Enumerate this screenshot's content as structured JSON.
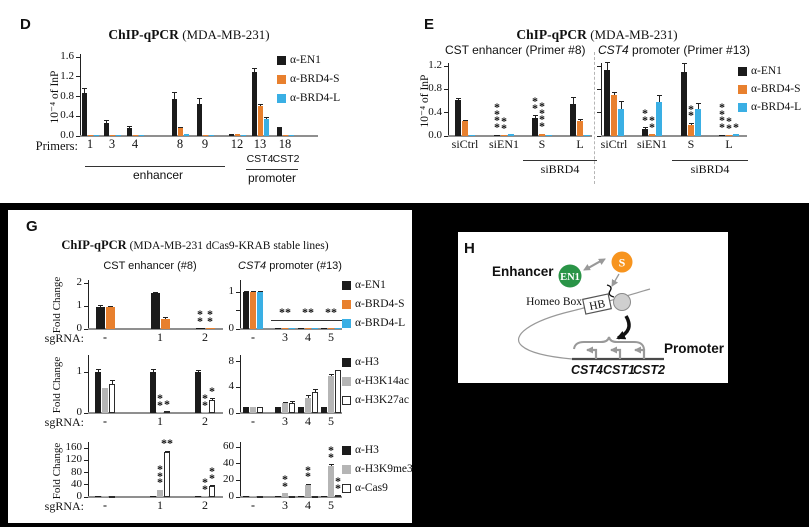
{
  "colors": {
    "background": "#000000",
    "panel_bg": "#ffffff",
    "black_bar": "#1b1b1b",
    "orange_bar": "#e8802e",
    "blue_bar": "#3aafe4",
    "gray_bar": "#b5b5b5",
    "white_bar": "#ffffff",
    "green_circle": "#2a9447",
    "orange_circle": "#f7941e"
  },
  "panels": {
    "d": {
      "letter": "D",
      "title": {
        "bold": "ChIP-qPCR",
        "rest": " (MDA-MB-231)"
      },
      "ylabel": "10⁻⁴ of InP",
      "primers": "Primers:",
      "groups": {
        "enhancer": "enhancer",
        "promoter": "promoter",
        "cst4": "CST4",
        "cst2": "CST2"
      }
    },
    "e": {
      "letter": "E",
      "title": {
        "bold": "ChIP-qPCR",
        "rest": " (MDA-MB-231)"
      },
      "ylabel": "10⁻⁴ of InP",
      "sub_left": "CST enhancer (Primer #8)",
      "sub_right_italic": "CST4",
      "sub_right_rest": " promoter (Primer #13)",
      "sibrd4": "siBRD4"
    },
    "g": {
      "letter": "G",
      "title": {
        "bold": "ChIP-qPCR",
        "rest": " (MDA-MB-231 dCas9-KRAB stable lines)"
      },
      "sub_left": "CST enhancer (#8)",
      "sub_right_italic": "CST4",
      "sub_right_rest": " promoter (#13)",
      "ylabel": "Fold Change",
      "sgrna": "sgRNA:"
    },
    "h": {
      "letter": "H",
      "enhancer": "Enhancer",
      "promoter": "Promoter",
      "homeo_box": "Homeo Box",
      "hb": "HB",
      "en1": "EN1",
      "s": "S",
      "genes": [
        "CST4",
        "CST1",
        "CST2"
      ]
    }
  },
  "legends": {
    "brd4": [
      {
        "label": "α-EN1",
        "color": "#1b1b1b"
      },
      {
        "label": "α-BRD4-S",
        "color": "#e8802e"
      },
      {
        "label": "α-BRD4-L",
        "color": "#3aafe4"
      }
    ],
    "ac": [
      {
        "label": "α-H3",
        "color": "#1b1b1b"
      },
      {
        "label": "α-H3K14ac",
        "color": "#b5b5b5"
      },
      {
        "label": "α-H3K27ac",
        "color": "#ffffff",
        "border": true
      }
    ],
    "me": [
      {
        "label": "α-H3",
        "color": "#1b1b1b"
      },
      {
        "label": "α-H3K9me3",
        "color": "#b5b5b5"
      },
      {
        "label": "α-Cas9",
        "color": "#ffffff",
        "border": true
      }
    ]
  },
  "chart_data": [
    {
      "id": "D",
      "type": "bar",
      "title": "ChIP-qPCR (MDA-MB-231)",
      "xlabel": "Primers",
      "ylabel": "10⁻⁴ of InP",
      "ylim": [
        0,
        1.6
      ],
      "yticks": [
        {
          "v": 0,
          "label": "0.0"
        },
        {
          "v": 0.4,
          "label": "0.4"
        },
        {
          "v": 0.8,
          "label": "0.8"
        },
        {
          "v": 1.2,
          "label": "1.2"
        },
        {
          "v": 1.6,
          "label": "1.6"
        }
      ],
      "categories": [
        "1",
        "3",
        "4",
        "8",
        "9",
        "12",
        "13",
        "18"
      ],
      "category_groups": {
        "enhancer": [
          "1",
          "3",
          "4",
          "8",
          "9"
        ],
        "CST4 promoter": [
          "13"
        ],
        "CST2 promoter": [
          "18"
        ]
      },
      "series": [
        {
          "name": "α-EN1",
          "color": "#1b1b1b",
          "values": [
            0.88,
            0.27,
            0.17,
            0.75,
            0.65,
            0.05,
            1.3,
            0.17
          ],
          "errors": [
            0.1,
            0.07,
            0.04,
            0.15,
            0.12,
            0,
            0.09,
            0.03
          ]
        },
        {
          "name": "α-BRD4-S",
          "color": "#e8802e",
          "values": [
            0.03,
            0.03,
            0.03,
            0.17,
            0.03,
            0.05,
            0.6,
            0.03
          ],
          "errors": [
            0,
            0,
            0,
            0.03,
            0,
            0,
            0.05,
            0
          ]
        },
        {
          "name": "α-BRD4-L",
          "color": "#3aafe4",
          "values": [
            0.03,
            0.03,
            0.03,
            0.05,
            0.03,
            0.03,
            0.35,
            0.03
          ],
          "errors": [
            0,
            0,
            0,
            0,
            0,
            0,
            0.05,
            0
          ]
        }
      ]
    },
    {
      "id": "E_enhancer",
      "type": "bar",
      "title": "CST enhancer (Primer #8)",
      "ylabel": "10⁻⁴ of InP",
      "ylim": [
        0,
        1.2
      ],
      "yticks": [
        {
          "v": 0,
          "label": "0.0"
        },
        {
          "v": 0.4,
          "label": "0.4"
        },
        {
          "v": 0.8,
          "label": "0.8"
        },
        {
          "v": 1.2,
          "label": "1.2"
        }
      ],
      "categories": [
        "siCtrl",
        "siEN1",
        "S",
        "L"
      ],
      "category_groups": {
        "siBRD4": [
          "S",
          "L"
        ]
      },
      "series": [
        {
          "name": "α-EN1",
          "color": "#1b1b1b",
          "values": [
            0.62,
            0.02,
            0.3,
            0.55
          ],
          "errors": [
            0.04,
            0,
            0.05,
            0.12
          ],
          "sig": [
            "",
            "****",
            "**",
            ""
          ]
        },
        {
          "name": "α-BRD4-S",
          "color": "#e8802e",
          "values": [
            0.25,
            0.02,
            0.03,
            0.25
          ],
          "errors": [
            0.02,
            0,
            0,
            0.03
          ],
          "sig": [
            "",
            "**",
            "****",
            ""
          ]
        },
        {
          "name": "α-BRD4-L",
          "color": "#3aafe4",
          "values": [
            0.02,
            0.03,
            0.02,
            0.02
          ],
          "errors": [
            0,
            0,
            0,
            0
          ]
        }
      ]
    },
    {
      "id": "E_promoter",
      "type": "bar",
      "title": "CST4 promoter (Primer #13)",
      "ylabel": "10⁻⁴ of InP",
      "ylim": [
        0,
        1.2
      ],
      "yticks": [
        {
          "v": 0,
          "label": ""
        },
        {
          "v": 0.4,
          "label": ""
        },
        {
          "v": 0.8,
          "label": ""
        },
        {
          "v": 1.2,
          "label": ""
        }
      ],
      "categories": [
        "siCtrl",
        "siEN1",
        "S",
        "L"
      ],
      "category_groups": {
        "siBRD4": [
          "S",
          "L"
        ]
      },
      "series": [
        {
          "name": "α-EN1",
          "color": "#1b1b1b",
          "values": [
            1.13,
            0.12,
            1.1,
            0.02
          ],
          "errors": [
            0.13,
            0.03,
            0.15,
            0
          ],
          "sig": [
            "",
            "**",
            "",
            "****"
          ]
        },
        {
          "name": "α-BRD4-S",
          "color": "#e8802e",
          "values": [
            0.7,
            0.03,
            0.18,
            0.02
          ],
          "errors": [
            0.05,
            0,
            0.04,
            0
          ],
          "sig": [
            "",
            "**",
            "**",
            "**"
          ]
        },
        {
          "name": "α-BRD4-L",
          "color": "#3aafe4",
          "values": [
            0.47,
            0.58,
            0.47,
            0.03
          ],
          "errors": [
            0.14,
            0.12,
            0.11,
            0
          ],
          "sig": [
            "",
            "",
            "",
            "*"
          ]
        }
      ]
    },
    {
      "id": "G_top_left",
      "type": "bar",
      "title": "CST enhancer (#8)",
      "ylabel": "Fold Change",
      "ylim": [
        0,
        2
      ],
      "yticks": [
        {
          "v": 0,
          "label": "0"
        },
        {
          "v": 1,
          "label": "1"
        },
        {
          "v": 2,
          "label": "2"
        }
      ],
      "categories": [
        "-",
        "1",
        "2"
      ],
      "series": [
        {
          "name": "α-EN1",
          "color": "#1b1b1b",
          "values": [
            0.97,
            1.55,
            0.03
          ],
          "errors": [
            0.08,
            0.06,
            0
          ],
          "sig": [
            "",
            "",
            "**"
          ]
        },
        {
          "name": "α-BRD4-S",
          "color": "#e8802e",
          "values": [
            0.97,
            0.42,
            0.04
          ],
          "errors": [
            0.06,
            0.08,
            0
          ],
          "sig": [
            "",
            "",
            "**"
          ]
        }
      ]
    },
    {
      "id": "G_top_right",
      "type": "bar",
      "title": "CST4 promoter (#13)",
      "ylabel": "Fold Change",
      "ylim": [
        0,
        1.25
      ],
      "yticks": [
        {
          "v": 0,
          "label": "0"
        },
        {
          "v": 0.5,
          "label": ""
        },
        {
          "v": 1,
          "label": "1"
        }
      ],
      "categories": [
        "-",
        "3",
        "4",
        "5"
      ],
      "group_sig": {
        "3": "**",
        "4": "**",
        "5": "**"
      },
      "series": [
        {
          "name": "α-EN1",
          "color": "#1b1b1b",
          "values": [
            1.0,
            0.03,
            0.03,
            0.03
          ],
          "errors": [
            0.04,
            0,
            0,
            0
          ]
        },
        {
          "name": "α-BRD4-S",
          "color": "#e8802e",
          "values": [
            1.0,
            0.03,
            0.03,
            0.03
          ],
          "errors": [
            0.04,
            0,
            0,
            0
          ]
        },
        {
          "name": "α-BRD4-L",
          "color": "#3aafe4",
          "values": [
            1.0,
            0.03,
            0.03,
            0.03
          ],
          "errors": [
            0.04,
            0,
            0,
            0
          ]
        }
      ]
    },
    {
      "id": "G_mid_left",
      "type": "bar",
      "ylabel": "Fold Change",
      "ylim": [
        0,
        1.35
      ],
      "yticks": [
        {
          "v": 0,
          "label": "0"
        },
        {
          "v": 1,
          "label": "1"
        }
      ],
      "categories": [
        "-",
        "1",
        "2"
      ],
      "series": [
        {
          "name": "α-H3",
          "color": "#1b1b1b",
          "values": [
            1.0,
            1.0,
            1.0
          ],
          "errors": [
            0.07,
            0.08,
            0.05
          ]
        },
        {
          "name": "α-H3K14ac",
          "color": "#b5b5b5",
          "values": [
            0.62,
            0.02,
            0.02
          ],
          "errors": [
            0,
            0,
            0
          ],
          "sig": [
            "",
            "**",
            "**"
          ]
        },
        {
          "name": "α-H3K27ac",
          "color": "#ffffff",
          "border": true,
          "values": [
            0.7,
            0.05,
            0.33
          ],
          "errors": [
            0.1,
            0,
            0.05
          ],
          "sig": [
            "",
            "*",
            "*"
          ]
        }
      ]
    },
    {
      "id": "G_mid_right",
      "type": "bar",
      "ylabel": "Fold Change",
      "ylim": [
        0,
        8.6
      ],
      "yticks": [
        {
          "v": 0,
          "label": "0"
        },
        {
          "v": 4,
          "label": "4"
        },
        {
          "v": 8,
          "label": "8"
        }
      ],
      "categories": [
        "-",
        "3",
        "4",
        "5"
      ],
      "series": [
        {
          "name": "α-H3",
          "color": "#1b1b1b",
          "values": [
            0.9,
            0.9,
            0.9,
            0.9
          ],
          "errors": [
            0,
            0,
            0,
            0
          ]
        },
        {
          "name": "α-H3K14ac",
          "color": "#b5b5b5",
          "values": [
            0.9,
            1.5,
            2.4,
            5.8
          ],
          "errors": [
            0,
            0.2,
            0.4,
            0.3
          ]
        },
        {
          "name": "α-H3K27ac",
          "color": "#ffffff",
          "border": true,
          "values": [
            1.0,
            1.5,
            3.3,
            6.8
          ],
          "errors": [
            0,
            0.25,
            0.45,
            0
          ]
        }
      ]
    },
    {
      "id": "G_bottom_left",
      "type": "bar",
      "ylabel": "Fold Change",
      "ylim": [
        0,
        170
      ],
      "yticks": [
        {
          "v": 0,
          "label": "0"
        },
        {
          "v": 40,
          "label": "40"
        },
        {
          "v": 80,
          "label": "80"
        },
        {
          "v": 120,
          "label": "120"
        },
        {
          "v": 160,
          "label": "160"
        }
      ],
      "categories": [
        "-",
        "1",
        "2"
      ],
      "series": [
        {
          "name": "α-H3",
          "color": "#1b1b1b",
          "values": [
            1.5,
            2,
            2
          ],
          "errors": [
            0,
            0,
            0
          ]
        },
        {
          "name": "α-H3K9me3",
          "color": "#b5b5b5",
          "values": [
            1.5,
            22,
            4
          ],
          "errors": [
            0,
            0,
            0
          ],
          "sig": [
            "",
            "***",
            "**"
          ]
        },
        {
          "name": "α-Cas9",
          "color": "#ffffff",
          "border": true,
          "values": [
            2,
            147,
            35
          ],
          "errors": [
            0,
            4,
            3
          ],
          "sig": [
            "",
            "**",
            "**"
          ],
          "sig_dir": [
            "",
            "h",
            "v"
          ]
        }
      ]
    },
    {
      "id": "G_bottom_right",
      "type": "bar",
      "ylabel": "Fold Change",
      "ylim": [
        0,
        63
      ],
      "yticks": [
        {
          "v": 0,
          "label": "0"
        },
        {
          "v": 20,
          "label": "20"
        },
        {
          "v": 40,
          "label": "40"
        },
        {
          "v": 60,
          "label": "60"
        }
      ],
      "categories": [
        "-",
        "3",
        "4",
        "5"
      ],
      "series": [
        {
          "name": "α-H3",
          "color": "#1b1b1b",
          "values": [
            1,
            1,
            1,
            1
          ],
          "errors": [
            0,
            0,
            0,
            0
          ]
        },
        {
          "name": "α-H3K9me3",
          "color": "#b5b5b5",
          "values": [
            1.5,
            5,
            14,
            37
          ],
          "errors": [
            0,
            0,
            1.5,
            2
          ],
          "sig": [
            "",
            "**",
            "**",
            "**"
          ]
        },
        {
          "name": "α-Cas9",
          "color": "#ffffff",
          "border": true,
          "values": [
            1,
            1,
            1.5,
            3
          ],
          "errors": [
            0,
            0,
            0,
            0
          ],
          "sig": [
            "",
            "",
            "",
            "**"
          ]
        }
      ]
    }
  ]
}
